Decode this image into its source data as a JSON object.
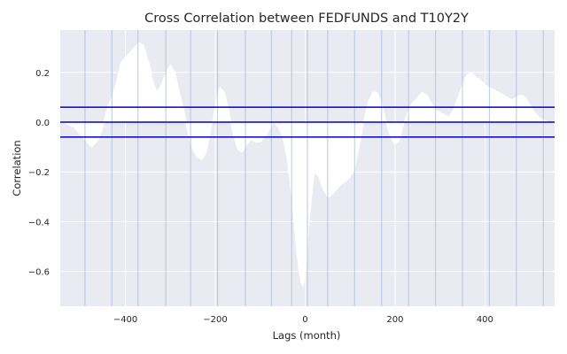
{
  "chart_data": {
    "type": "line",
    "title": "Cross Correlation between FEDFUNDS and T10Y2Y",
    "xlabel": "Lags (month)",
    "ylabel": "Correlation",
    "xlim": [
      -545,
      555
    ],
    "ylim": [
      -0.74,
      0.37
    ],
    "x_ticks": [
      -400,
      -200,
      0,
      200,
      400
    ],
    "x_tick_labels": [
      "−400",
      "−200",
      "0",
      "200",
      "400"
    ],
    "y_ticks": [
      0.2,
      0.0,
      -0.2,
      -0.4,
      -0.6
    ],
    "y_tick_labels": [
      "0.2",
      "0.0",
      "−0.2",
      "−0.4",
      "−0.6"
    ],
    "grid": true,
    "background_color": "#eaeaf2",
    "series": [
      {
        "color": "#ffffff",
        "x": [
          -540,
          -515,
          -500,
          -490,
          -475,
          -460,
          -450,
          -440,
          -430,
          -420,
          -410,
          -400,
          -390,
          -380,
          -370,
          -360,
          -355,
          -345,
          -340,
          -330,
          -320,
          -310,
          -300,
          -290,
          -280,
          -270,
          -260,
          -250,
          -240,
          -230,
          -220,
          -210,
          -200,
          -195,
          -190,
          -180,
          -170,
          -160,
          -150,
          -140,
          -130,
          -120,
          -110,
          -100,
          -90,
          -80,
          -70,
          -60,
          -50,
          -40,
          -35,
          -30,
          -25,
          -20,
          -15,
          -10,
          -5,
          0,
          5,
          10,
          20,
          30,
          40,
          50,
          55,
          60,
          70,
          80,
          90,
          100,
          110,
          120,
          130,
          140,
          150,
          160,
          170,
          180,
          190,
          200,
          210,
          220,
          230,
          240,
          250,
          260,
          270,
          280,
          290,
          300,
          310,
          320,
          330,
          340,
          350,
          360,
          370,
          380,
          390,
          400,
          410,
          420,
          430,
          440,
          450,
          460,
          470,
          480,
          490,
          500,
          510,
          520,
          530,
          540,
          550
        ],
        "y": [
          0.0,
          -0.02,
          -0.05,
          -0.07,
          -0.1,
          -0.07,
          -0.02,
          0.06,
          0.1,
          0.16,
          0.24,
          0.26,
          0.28,
          0.3,
          0.32,
          0.31,
          0.28,
          0.22,
          0.17,
          0.12,
          0.15,
          0.2,
          0.23,
          0.2,
          0.12,
          0.05,
          -0.05,
          -0.11,
          -0.14,
          -0.15,
          -0.12,
          -0.03,
          0.06,
          0.11,
          0.14,
          0.12,
          0.05,
          -0.05,
          -0.11,
          -0.12,
          -0.09,
          -0.07,
          -0.08,
          -0.08,
          -0.06,
          -0.03,
          0.0,
          -0.02,
          -0.06,
          -0.15,
          -0.22,
          -0.3,
          -0.4,
          -0.5,
          -0.58,
          -0.64,
          -0.66,
          -0.62,
          -0.5,
          -0.38,
          -0.2,
          -0.22,
          -0.27,
          -0.3,
          -0.3,
          -0.29,
          -0.27,
          -0.25,
          -0.24,
          -0.22,
          -0.19,
          -0.1,
          0.0,
          0.08,
          0.12,
          0.12,
          0.08,
          0.0,
          -0.06,
          -0.09,
          -0.07,
          0.0,
          0.05,
          0.08,
          0.1,
          0.12,
          0.11,
          0.08,
          0.05,
          0.04,
          0.03,
          0.02,
          0.05,
          0.1,
          0.15,
          0.19,
          0.2,
          0.18,
          0.17,
          0.15,
          0.14,
          0.13,
          0.12,
          0.11,
          0.1,
          0.09,
          0.1,
          0.11,
          0.1,
          0.07,
          0.04,
          0.02,
          0.01,
          0.0,
          0.0
        ]
      }
    ],
    "horizontal_lines": [
      {
        "y": 0.06,
        "color": "#0000cc"
      },
      {
        "y": 0.0,
        "color": "#0000cc"
      },
      {
        "y": -0.06,
        "color": "#0000cc"
      }
    ],
    "vertical_lines": {
      "color": "#b3bfdf",
      "x": [
        -490,
        -430,
        -372,
        -310,
        -255,
        -195,
        -133,
        -75,
        -30,
        5,
        50,
        110,
        170,
        230,
        290,
        350,
        410,
        470,
        530
      ]
    }
  }
}
